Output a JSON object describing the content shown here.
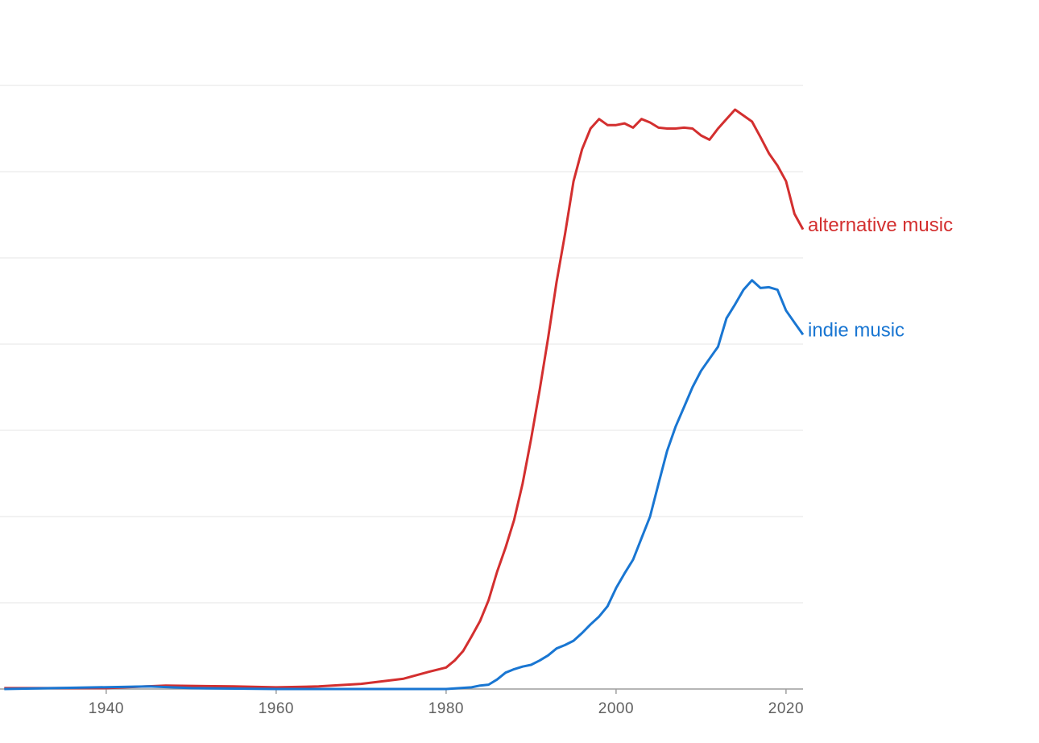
{
  "chart_data": {
    "type": "line",
    "xlim": [
      1927.5,
      2022
    ],
    "xticks": [
      1940,
      1960,
      1980,
      2000,
      2020
    ],
    "ylim": [
      0,
      8
    ],
    "grid_lines": [
      1,
      2,
      3,
      4,
      5,
      6,
      7
    ],
    "series": [
      {
        "name": "alternative music",
        "color": "#d32f2f",
        "x": [
          1928,
          1940,
          1947,
          1955,
          1960,
          1965,
          1970,
          1975,
          1978,
          1980,
          1981,
          1982,
          1983,
          1984,
          1985,
          1986,
          1987,
          1988,
          1989,
          1990,
          1991,
          1992,
          1993,
          1994,
          1995,
          1996,
          1997,
          1998,
          1999,
          2000,
          2001,
          2002,
          2003,
          2004,
          2005,
          2006,
          2007,
          2008,
          2009,
          2010,
          2011,
          2012,
          2013,
          2014,
          2015,
          2016,
          2017,
          2018,
          2019,
          2020,
          2021,
          2022
        ],
        "values": [
          0.01,
          0.01,
          0.04,
          0.03,
          0.02,
          0.03,
          0.06,
          0.12,
          0.2,
          0.25,
          0.33,
          0.44,
          0.61,
          0.79,
          1.03,
          1.36,
          1.64,
          1.96,
          2.38,
          2.9,
          3.46,
          4.07,
          4.72,
          5.28,
          5.89,
          6.26,
          6.5,
          6.61,
          6.54,
          6.54,
          6.56,
          6.51,
          6.61,
          6.57,
          6.51,
          6.5,
          6.5,
          6.51,
          6.5,
          6.42,
          6.37,
          6.5,
          6.61,
          6.72,
          6.65,
          6.58,
          6.4,
          6.21,
          6.07,
          5.89,
          5.51,
          5.33
        ]
      },
      {
        "name": "indie music",
        "color": "#1976d2",
        "x": [
          1928,
          1945,
          1950,
          1960,
          1970,
          1980,
          1983,
          1984,
          1985,
          1986,
          1987,
          1988,
          1989,
          1990,
          1991,
          1992,
          1993,
          1994,
          1995,
          1996,
          1997,
          1998,
          1999,
          2000,
          2001,
          2002,
          2003,
          2004,
          2005,
          2006,
          2007,
          2008,
          2009,
          2010,
          2011,
          2012,
          2013,
          2014,
          2015,
          2016,
          2017,
          2018,
          2019,
          2020,
          2021,
          2022
        ],
        "values": [
          0,
          0.03,
          0.01,
          0,
          0,
          0,
          0.02,
          0.04,
          0.05,
          0.11,
          0.19,
          0.23,
          0.26,
          0.28,
          0.33,
          0.39,
          0.47,
          0.51,
          0.56,
          0.65,
          0.75,
          0.84,
          0.96,
          1.17,
          1.34,
          1.5,
          1.75,
          2.0,
          2.38,
          2.76,
          3.04,
          3.27,
          3.5,
          3.69,
          3.83,
          3.97,
          4.3,
          4.46,
          4.63,
          4.74,
          4.65,
          4.66,
          4.63,
          4.39,
          4.25,
          4.11
        ]
      }
    ]
  }
}
